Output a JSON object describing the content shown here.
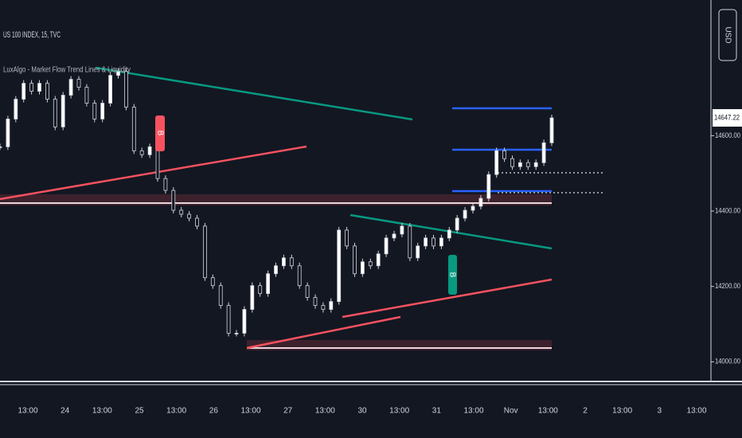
{
  "chart_data": {
    "type": "candlestick",
    "title": "US 100 INDEX, 15, TVC",
    "subtitle": "LuxAlgo - Market Flow Trend Lines & Liquidity",
    "y_label": "USD",
    "x_labels": [
      "13:00",
      "24",
      "13:00",
      "25",
      "13:00",
      "26",
      "13:00",
      "27",
      "13:00",
      "30",
      "13:00",
      "31",
      "13:00",
      "Nov",
      "13:00",
      "2",
      "13:00",
      "3",
      "13:00"
    ],
    "close": [
      14570.5,
      14644.2,
      14696.8,
      14738.9,
      14717.9,
      14738.9,
      14696.8,
      14623.2,
      14707.4,
      14749.5,
      14728.4,
      14686.3,
      14644.2,
      14686.3,
      14760,
      14770.5,
      14675.8,
      14560,
      14549.5,
      14570.5,
      14486.3,
      14454.8,
      14402.1,
      14391.6,
      14381.1,
      14360,
      14223.2,
      14202.2,
      14149.5,
      14075.9,
      14075.9,
      14139,
      14202.2,
      14181.1,
      14233.7,
      14254.8,
      14275.8,
      14254.8,
      14202.2,
      14170.6,
      14149.5,
      14139,
      14160,
      14349.5,
      14307.4,
      14233.7,
      14265.3,
      14254.8,
      14286.4,
      14328.5,
      14339,
      14360,
      14275.8,
      14307.4,
      14328.5,
      14307.4,
      14328.5,
      14349.5,
      14381.1,
      14402.1,
      14412.7,
      14433.7,
      14496.9,
      14560,
      14539,
      14517.9,
      14528.4,
      14517.9,
      14528.4,
      14581.1,
      14647.22
    ],
    "up_color": "#ffffff",
    "down_color": "#131722",
    "ylim": [
      13950,
      14960
    ],
    "yticks": [
      {
        "value": 14600,
        "label": "14600.00"
      },
      {
        "value": 14400,
        "label": "14400.00"
      },
      {
        "value": 14200,
        "label": "14200.00"
      },
      {
        "value": 14000,
        "label": "14000.00"
      }
    ],
    "annotations": [
      {
        "text": "B",
        "color": "#f7525f"
      },
      {
        "text": "B",
        "color": "#089981"
      }
    ]
  }
}
